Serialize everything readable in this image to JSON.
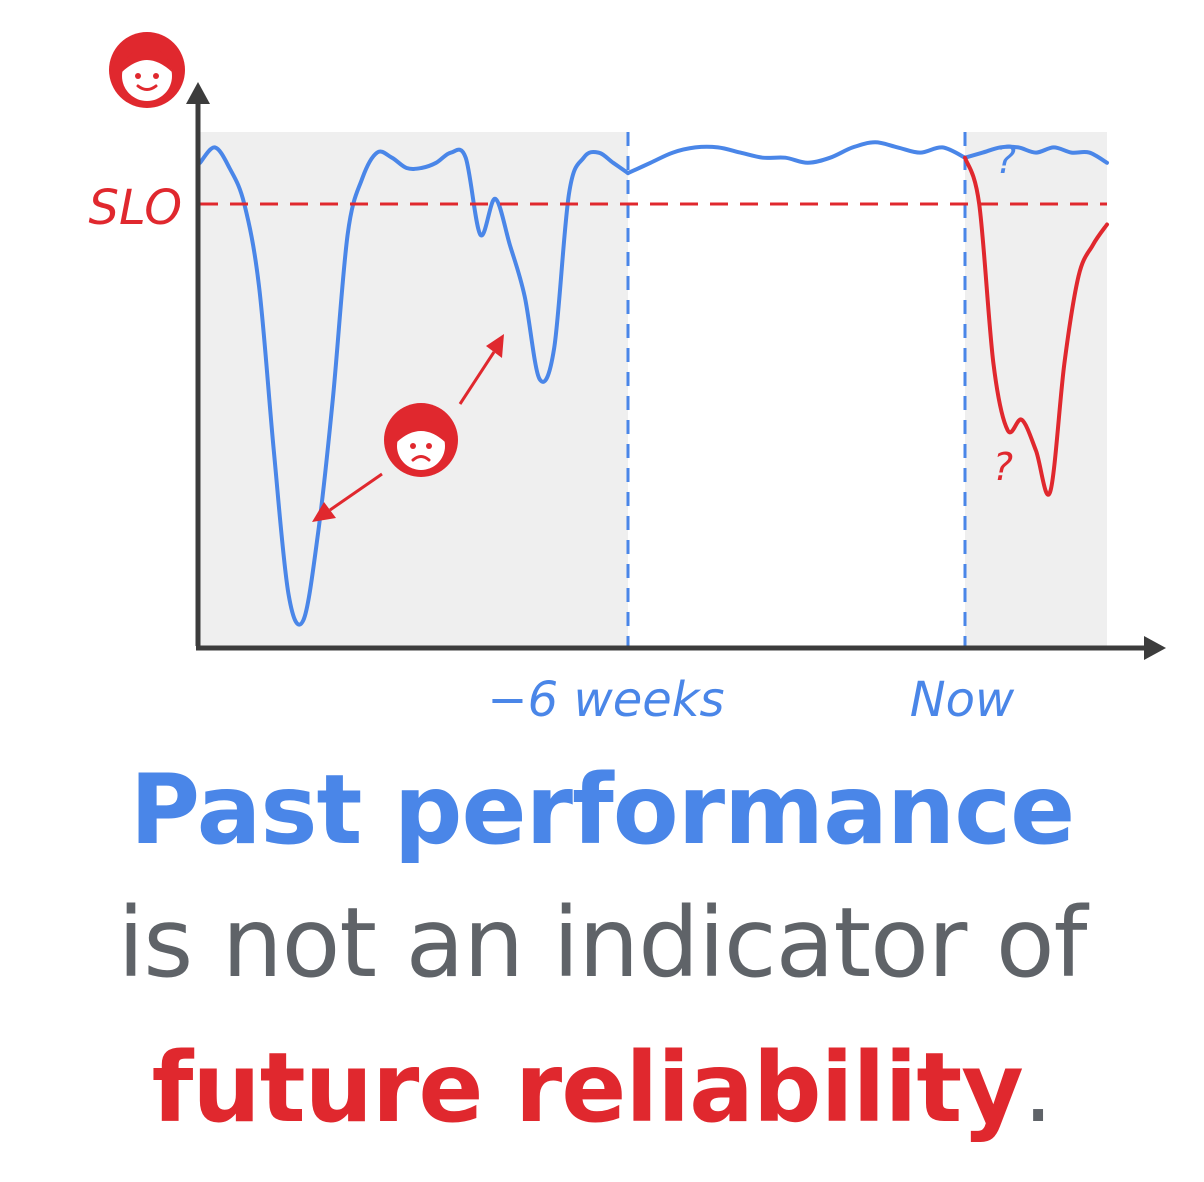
{
  "colors": {
    "blue": "#4a86e8",
    "red": "#e0282e",
    "axis": "#3c3c3c",
    "shade": "#efefef",
    "gray_text": "#5f6368"
  },
  "chart_data": {
    "type": "line",
    "xlabel": "",
    "ylabel": "",
    "x_ticks": [
      {
        "label": "−6 weeks"
      },
      {
        "label": "Now"
      }
    ],
    "slo": {
      "label": "SLO"
    },
    "series": [
      {
        "id": "past",
        "color": "#4a86e8",
        "values": [
          0.94,
          0.97,
          0.93,
          0.86,
          0.7,
          0.38,
          0.1,
          0.05,
          0.22,
          0.48,
          0.8,
          0.91,
          0.96,
          0.95,
          0.93,
          0.93,
          0.94,
          0.96,
          0.95,
          0.8,
          0.87,
          0.78,
          0.68,
          0.52,
          0.58,
          0.88,
          0.95,
          0.96,
          0.94,
          0.92
        ]
      },
      {
        "id": "recent",
        "color": "#4a86e8",
        "values": [
          0.92,
          0.94,
          0.96,
          0.97,
          0.97,
          0.96,
          0.95,
          0.95,
          0.94,
          0.95,
          0.97,
          0.98,
          0.97,
          0.96,
          0.97,
          0.95
        ]
      },
      {
        "id": "future_good",
        "color": "#4a86e8",
        "values": [
          0.95,
          0.96,
          0.97,
          0.97,
          0.96,
          0.97,
          0.96,
          0.96,
          0.94
        ]
      },
      {
        "id": "future_bad",
        "color": "#e0282e",
        "values": [
          0.95,
          0.86,
          0.55,
          0.42,
          0.44,
          0.38,
          0.3,
          0.55,
          0.72,
          0.78,
          0.82
        ]
      }
    ],
    "annotations": [
      "?",
      "?"
    ]
  },
  "caption": {
    "line1": "Past performance",
    "line2": "is not an indicator of",
    "line3_main": "future reliability",
    "line3_end": "."
  }
}
